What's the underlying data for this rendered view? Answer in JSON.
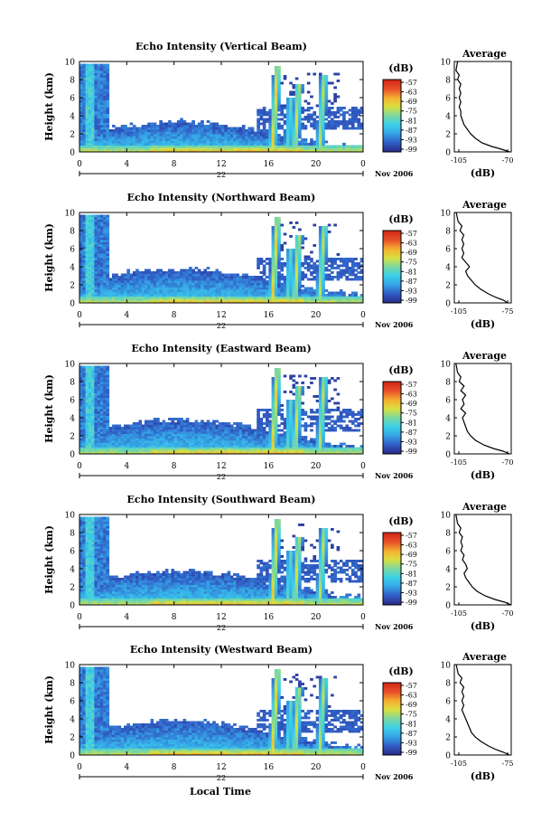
{
  "figure": {
    "xlabel_bottom": "Local Time",
    "ylabel": "Height (km)",
    "colorbar_unit": "(dB)",
    "colorbar_ticks": [
      "-57",
      "-63",
      "-69",
      "-75",
      "-81",
      "-87",
      "-93",
      "-99"
    ],
    "avg_title": "Average",
    "avg_xlabel": "(dB)",
    "date_label": "Nov 2006",
    "colors": {
      "background": "#ffffff",
      "axis": "#000000",
      "low": "#2b2f8f",
      "mid": "#32c8f0",
      "high": "#d62817"
    }
  },
  "chart_data": [
    {
      "type": "heatmap",
      "title": "Echo Intensity (Vertical Beam)",
      "ylabel": "Height (km)",
      "ylim": [
        0,
        10
      ],
      "yticks": [
        "0",
        "2",
        "4",
        "6",
        "8",
        "10"
      ],
      "xlim": [
        0,
        24
      ],
      "xticks": [
        "0",
        "4",
        "8",
        "12",
        "16",
        "20",
        "0"
      ],
      "date_mid": "22",
      "colorbar_unit": "(dB)",
      "colorbar_ticks": [
        "-57",
        "-63",
        "-69",
        "-75",
        "-81",
        "-87",
        "-93",
        "-99"
      ],
      "average": {
        "title": "Average",
        "xticks": [
          "-105",
          "-70"
        ],
        "xlim": [
          -105,
          -70
        ],
        "xlabel": "(dB)",
        "yticks": [
          "0",
          "2",
          "4",
          "6",
          "8",
          "10"
        ],
        "profile": [
          [
            -103,
            10
          ],
          [
            -104,
            9
          ],
          [
            -102,
            8.5
          ],
          [
            -103,
            8
          ],
          [
            -101,
            7.5
          ],
          [
            -102,
            7
          ],
          [
            -101,
            6.5
          ],
          [
            -102,
            6
          ],
          [
            -101,
            5.5
          ],
          [
            -102,
            5
          ],
          [
            -101,
            4.5
          ],
          [
            -101,
            4
          ],
          [
            -100,
            3.5
          ],
          [
            -99,
            3
          ],
          [
            -97,
            2.5
          ],
          [
            -95,
            2
          ],
          [
            -92,
            1.5
          ],
          [
            -88,
            1
          ],
          [
            -82,
            0.6
          ],
          [
            -76,
            0.3
          ],
          [
            -71,
            0
          ]
        ]
      }
    },
    {
      "type": "heatmap",
      "title": "Echo Intensity (Northward Beam)",
      "ylabel": "Height (km)",
      "ylim": [
        0,
        10
      ],
      "yticks": [
        "0",
        "2",
        "4",
        "6",
        "8",
        "10"
      ],
      "xlim": [
        0,
        24
      ],
      "xticks": [
        "0",
        "4",
        "8",
        "12",
        "16",
        "20",
        "0"
      ],
      "date_mid": "22",
      "colorbar_unit": "(dB)",
      "colorbar_ticks": [
        "-57",
        "-63",
        "-69",
        "-75",
        "-81",
        "-87",
        "-93",
        "-99"
      ],
      "average": {
        "title": "Average",
        "xticks": [
          "-105",
          "-75"
        ],
        "xlim": [
          -105,
          -75
        ],
        "xlabel": "(dB)",
        "yticks": [
          "0",
          "2",
          "4",
          "6",
          "8",
          "10"
        ],
        "profile": [
          [
            -104,
            10
          ],
          [
            -103,
            9
          ],
          [
            -101,
            8.5
          ],
          [
            -102,
            8
          ],
          [
            -100,
            7.5
          ],
          [
            -101,
            7
          ],
          [
            -100,
            6.5
          ],
          [
            -101,
            6
          ],
          [
            -100,
            5.5
          ],
          [
            -101,
            5
          ],
          [
            -99,
            4.5
          ],
          [
            -97,
            4
          ],
          [
            -99,
            3.5
          ],
          [
            -98,
            3
          ],
          [
            -96,
            2.5
          ],
          [
            -94,
            2
          ],
          [
            -91,
            1.5
          ],
          [
            -87,
            1
          ],
          [
            -83,
            0.6
          ],
          [
            -79,
            0.3
          ],
          [
            -77,
            0
          ]
        ]
      }
    },
    {
      "type": "heatmap",
      "title": "Echo Intensity (Eastward Beam)",
      "ylabel": "Height (km)",
      "ylim": [
        0,
        10
      ],
      "yticks": [
        "0",
        "2",
        "4",
        "6",
        "8",
        "10"
      ],
      "xlim": [
        0,
        24
      ],
      "xticks": [
        "0",
        "4",
        "8",
        "12",
        "16",
        "20",
        "0"
      ],
      "date_mid": "22",
      "colorbar_unit": "(dB)",
      "colorbar_ticks": [
        "-57",
        "-63",
        "-69",
        "-75",
        "-81",
        "-87",
        "-93",
        "-99"
      ],
      "average": {
        "title": "Average",
        "xticks": [
          "-105",
          "-70"
        ],
        "xlim": [
          -105,
          -70
        ],
        "xlabel": "(dB)",
        "yticks": [
          "0",
          "2",
          "4",
          "6",
          "8",
          "10"
        ],
        "profile": [
          [
            -104,
            10
          ],
          [
            -103,
            9
          ],
          [
            -101,
            8.5
          ],
          [
            -102,
            8
          ],
          [
            -99,
            7.5
          ],
          [
            -101,
            7
          ],
          [
            -98,
            6.5
          ],
          [
            -100,
            6
          ],
          [
            -99,
            5.5
          ],
          [
            -101,
            5
          ],
          [
            -98,
            4.5
          ],
          [
            -100,
            4
          ],
          [
            -99,
            3.5
          ],
          [
            -98,
            3
          ],
          [
            -97,
            2.5
          ],
          [
            -95,
            2
          ],
          [
            -92,
            1.5
          ],
          [
            -87,
            1
          ],
          [
            -81,
            0.6
          ],
          [
            -75,
            0.3
          ],
          [
            -71,
            0
          ]
        ]
      }
    },
    {
      "type": "heatmap",
      "title": "Echo Intensity (Southward Beam)",
      "ylabel": "Height (km)",
      "ylim": [
        0,
        10
      ],
      "yticks": [
        "0",
        "2",
        "4",
        "6",
        "8",
        "10"
      ],
      "xlim": [
        0,
        24
      ],
      "xticks": [
        "0",
        "4",
        "8",
        "12",
        "16",
        "20",
        "0"
      ],
      "date_mid": "22",
      "colorbar_unit": "(dB)",
      "colorbar_ticks": [
        "-57",
        "-63",
        "-69",
        "-75",
        "-81",
        "-87",
        "-93",
        "-99"
      ],
      "average": {
        "title": "Average",
        "xticks": [
          "-105",
          "-70"
        ],
        "xlim": [
          -105,
          -70
        ],
        "xlabel": "(dB)",
        "yticks": [
          "0",
          "2",
          "4",
          "6",
          "8",
          "10"
        ],
        "profile": [
          [
            -104,
            10
          ],
          [
            -103,
            9
          ],
          [
            -101,
            8.5
          ],
          [
            -102,
            8
          ],
          [
            -100,
            7.5
          ],
          [
            -101,
            7
          ],
          [
            -100,
            6.5
          ],
          [
            -101,
            6
          ],
          [
            -99,
            5.5
          ],
          [
            -100,
            5
          ],
          [
            -98,
            4.5
          ],
          [
            -97,
            4
          ],
          [
            -99,
            3.5
          ],
          [
            -98,
            3
          ],
          [
            -96,
            2.5
          ],
          [
            -94,
            2
          ],
          [
            -91,
            1.5
          ],
          [
            -86,
            1
          ],
          [
            -80,
            0.6
          ],
          [
            -74,
            0.3
          ],
          [
            -70,
            0
          ]
        ]
      }
    },
    {
      "type": "heatmap",
      "title": "Echo Intensity (Westward Beam)",
      "ylabel": "Height (km)",
      "ylim": [
        0,
        10
      ],
      "yticks": [
        "0",
        "2",
        "4",
        "6",
        "8",
        "10"
      ],
      "xlim": [
        0,
        24
      ],
      "xticks": [
        "0",
        "4",
        "8",
        "12",
        "16",
        "20",
        "0"
      ],
      "date_mid": "22",
      "colorbar_unit": "(dB)",
      "colorbar_ticks": [
        "-57",
        "-63",
        "-69",
        "-75",
        "-81",
        "-87",
        "-93",
        "-99"
      ],
      "average": {
        "title": "Average",
        "xticks": [
          "-105",
          "-75"
        ],
        "xlim": [
          -105,
          -75
        ],
        "xlabel": "(dB)",
        "yticks": [
          "0",
          "2",
          "4",
          "6",
          "8",
          "10"
        ],
        "profile": [
          [
            -104,
            10
          ],
          [
            -103,
            9
          ],
          [
            -101,
            8.5
          ],
          [
            -102,
            8
          ],
          [
            -100,
            7.5
          ],
          [
            -101,
            7
          ],
          [
            -100,
            6.5
          ],
          [
            -101,
            6
          ],
          [
            -100,
            5.5
          ],
          [
            -101,
            5
          ],
          [
            -100,
            4.5
          ],
          [
            -99,
            4
          ],
          [
            -98,
            3.5
          ],
          [
            -97,
            3
          ],
          [
            -96,
            2.5
          ],
          [
            -94,
            2
          ],
          [
            -91,
            1.5
          ],
          [
            -87,
            1
          ],
          [
            -83,
            0.6
          ],
          [
            -79,
            0.3
          ],
          [
            -76,
            0
          ]
        ]
      }
    }
  ]
}
